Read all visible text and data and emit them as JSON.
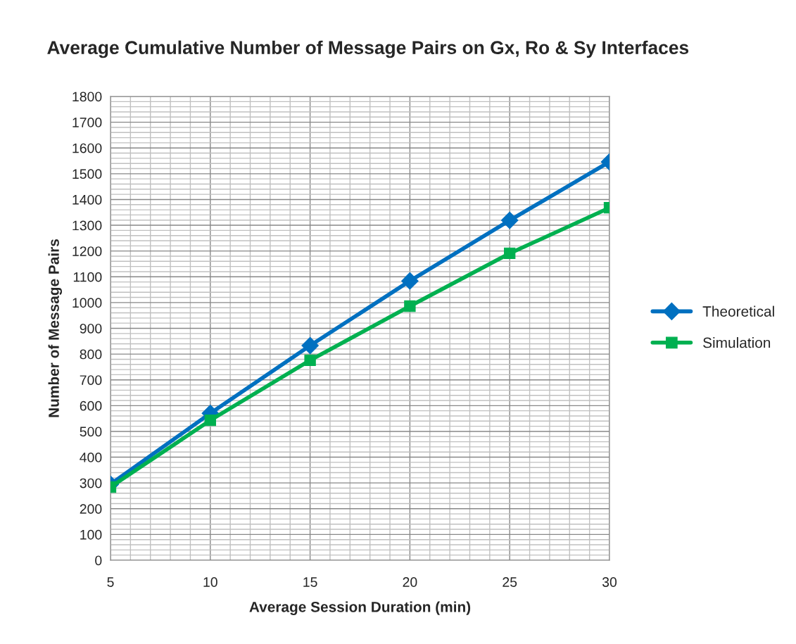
{
  "chart_data": {
    "type": "line",
    "title": "Average Cumulative Number of Message Pairs on Gx, Ro & Sy Interfaces",
    "xlabel": "Average Session Duration (min)",
    "ylabel": "Number of Message Pairs",
    "x": [
      5,
      10,
      15,
      20,
      25,
      30
    ],
    "series": [
      {
        "name": "Theoretical",
        "color": "#0070c0",
        "marker": "diamond",
        "values": [
          295,
          570,
          833,
          1084,
          1319,
          1546
        ]
      },
      {
        "name": "Simulation",
        "color": "#00b050",
        "marker": "square",
        "values": [
          284,
          543,
          776,
          986,
          1191,
          1368
        ]
      }
    ],
    "xlim": [
      5,
      30
    ],
    "xticks": [
      5,
      10,
      15,
      20,
      25,
      30
    ],
    "ylim": [
      0,
      1800
    ],
    "yticks": [
      0,
      100,
      200,
      300,
      400,
      500,
      600,
      700,
      800,
      900,
      1000,
      1100,
      1200,
      1300,
      1400,
      1500,
      1600,
      1700,
      1800
    ],
    "grid": true,
    "legend": "right",
    "line_style": "solid"
  }
}
